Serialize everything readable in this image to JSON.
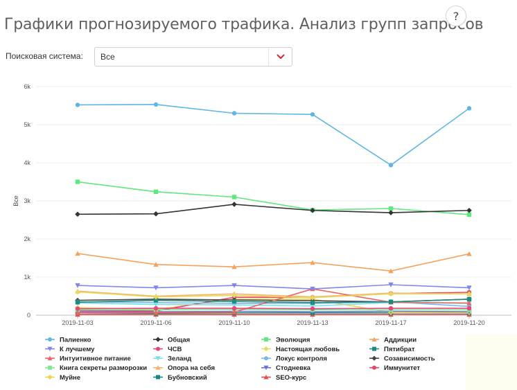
{
  "header": {
    "title": "Графики прогнозируемого трафика. Анализ групп запросов",
    "help_label": "?"
  },
  "filter": {
    "label": "Поисковая система:",
    "value": "Все",
    "arrow_icon": "chevron-down-icon",
    "arrow_color": "#d9262e"
  },
  "chart_data": {
    "type": "line",
    "ylabel": "Все",
    "xlabel": "",
    "x": [
      "2019-11-03",
      "2019-11-06",
      "2019-11-10",
      "2019-11-13",
      "2019-11-17",
      "2019-11-20"
    ],
    "ylim": [
      0,
      6000
    ],
    "yticks": [
      0,
      1000,
      2000,
      3000,
      4000,
      5000,
      6000
    ],
    "ytick_labels": [
      "0",
      "1k",
      "2k",
      "3k",
      "4k",
      "5k",
      "6k"
    ],
    "grid": true,
    "legend": "bottom",
    "series": [
      {
        "name": "Палиенко",
        "color": "#5fb6e3",
        "marker": "circle",
        "values": [
          5520,
          5530,
          5300,
          5270,
          3940,
          5430
        ]
      },
      {
        "name": "Общая",
        "color": "#333333",
        "marker": "diamond",
        "values": [
          2650,
          2660,
          2910,
          2750,
          2690,
          2750
        ]
      },
      {
        "name": "Эволюция",
        "color": "#5fe87c",
        "marker": "square",
        "values": [
          3500,
          3240,
          3100,
          2760,
          2800,
          2640
        ]
      },
      {
        "name": "Аддикции",
        "color": "#f5a25d",
        "marker": "triangle",
        "values": [
          1620,
          1330,
          1270,
          1380,
          1160,
          1610
        ]
      },
      {
        "name": "К лучшему",
        "color": "#8087e8",
        "marker": "triangle-down",
        "values": [
          780,
          720,
          780,
          690,
          800,
          720
        ]
      },
      {
        "name": "ЧСВ",
        "color": "#e8457a",
        "marker": "circle",
        "values": [
          170,
          180,
          180,
          170,
          180,
          180
        ]
      },
      {
        "name": "Настоящая любовь",
        "color": "#e8d85c",
        "marker": "diamond",
        "values": [
          610,
          480,
          520,
          460,
          560,
          560
        ]
      },
      {
        "name": "Пятибрат",
        "color": "#1f8a7e",
        "marker": "square",
        "values": [
          340,
          390,
          360,
          330,
          350,
          420
        ]
      },
      {
        "name": "Интуитивное питание",
        "color": "#f06262",
        "marker": "triangle",
        "values": [
          60,
          70,
          80,
          690,
          340,
          320
        ]
      },
      {
        "name": "Зеланд",
        "color": "#7cdfe6",
        "marker": "triangle-down",
        "values": [
          320,
          280,
          270,
          240,
          330,
          310
        ]
      },
      {
        "name": "Локус контроля",
        "color": "#7ab8e8",
        "marker": "circle",
        "values": [
          350,
          330,
          310,
          310,
          350,
          230
        ]
      },
      {
        "name": "Созависимость",
        "color": "#444444",
        "marker": "diamond",
        "values": [
          390,
          420,
          400,
          380,
          350,
          420
        ]
      },
      {
        "name": "Книга секреты разморозки",
        "color": "#7ee898",
        "marker": "square",
        "values": [
          140,
          140,
          150,
          140,
          140,
          140
        ]
      },
      {
        "name": "Опора на себя",
        "color": "#f5b36b",
        "marker": "triangle",
        "values": [
          630,
          500,
          560,
          480,
          580,
          560
        ]
      },
      {
        "name": "Стодневка",
        "color": "#6a72d9",
        "marker": "triangle-down",
        "values": [
          90,
          90,
          100,
          90,
          100,
          90
        ]
      },
      {
        "name": "Иммунитет",
        "color": "#e8456a",
        "marker": "circle",
        "values": [
          120,
          110,
          470,
          470,
          570,
          600
        ]
      },
      {
        "name": "Муйне",
        "color": "#efd44f",
        "marker": "diamond",
        "values": [
          200,
          150,
          420,
          420,
          70,
          70
        ]
      },
      {
        "name": "Бубновский",
        "color": "#178a7b",
        "marker": "square",
        "values": [
          60,
          50,
          60,
          60,
          60,
          60
        ]
      },
      {
        "name": "SEO-курс",
        "color": "#e84b4b",
        "marker": "triangle",
        "values": [
          20,
          20,
          20,
          20,
          20,
          20
        ]
      }
    ]
  }
}
